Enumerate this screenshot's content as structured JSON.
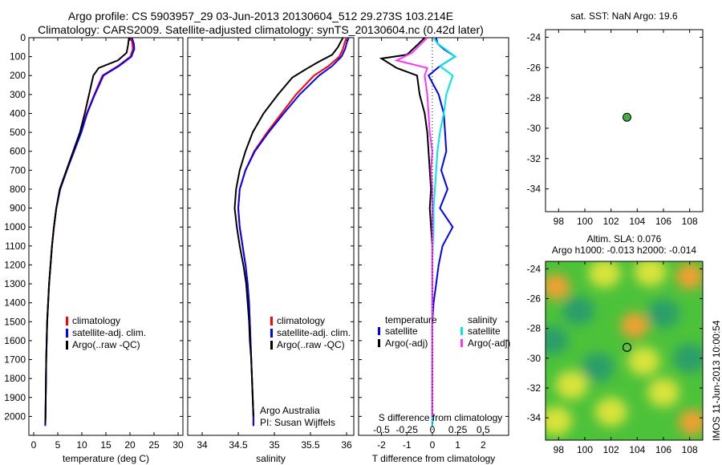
{
  "header": {
    "line1": "Argo profile: CS 5903957_29 03-Jun-2013 20130604_512 29.273S 103.214E",
    "line2": "Climatology: CARS2009. Satellite-adjusted climatology: synTS_20130604.nc (0.42d later)"
  },
  "watermark": "IMOS 11-Jun-2013 10:00:54",
  "colors": {
    "climatology": "#ff0000",
    "satellite": "#0000ff",
    "argo": "#000000",
    "salinity_satellite": "#00e5e5",
    "salinity_argo": "#ff33ff",
    "float_marker": "#3cb043"
  },
  "chart_data": [
    {
      "id": "temperature",
      "type": "line",
      "xlabel": "temperature (deg C)",
      "xlim": [
        -1,
        31
      ],
      "xticks": [
        0,
        5,
        10,
        15,
        20,
        25,
        30
      ],
      "ylim": [
        2100,
        0
      ],
      "yticks": [
        0,
        100,
        200,
        300,
        400,
        500,
        600,
        700,
        800,
        900,
        1000,
        1100,
        1200,
        1300,
        1400,
        1500,
        1600,
        1700,
        1800,
        1900,
        2000
      ],
      "legend": [
        "climatology",
        "satellite-adj. clim.",
        "Argo(..raw -QC)"
      ],
      "series": [
        {
          "name": "climatology",
          "color": "red",
          "x": [
            20.2,
            20.5,
            20.6,
            20.1,
            17.5,
            14.3,
            12.6,
            11.0,
            9.8,
            8.3,
            6.9,
            5.5,
            4.7,
            4.2,
            3.8,
            3.5,
            3.2,
            3.0,
            2.8,
            2.7,
            2.6,
            2.55,
            2.5,
            2.45,
            2.4
          ],
          "y": [
            0,
            30,
            60,
            100,
            150,
            200,
            300,
            400,
            500,
            600,
            700,
            800,
            900,
            1000,
            1100,
            1200,
            1300,
            1400,
            1500,
            1600,
            1700,
            1800,
            1900,
            2000,
            2050
          ]
        },
        {
          "name": "satellite-adj. clim.",
          "color": "blue",
          "x": [
            20.4,
            20.8,
            20.9,
            20.3,
            17.7,
            14.5,
            12.7,
            11.1,
            9.9,
            8.4,
            6.9,
            5.5,
            4.7,
            4.2,
            3.8,
            3.5,
            3.2,
            3.0,
            2.8,
            2.7,
            2.6,
            2.55,
            2.5,
            2.45,
            2.4
          ],
          "y": [
            0,
            30,
            60,
            100,
            150,
            200,
            300,
            400,
            500,
            600,
            700,
            800,
            900,
            1000,
            1100,
            1200,
            1300,
            1400,
            1500,
            1600,
            1700,
            1800,
            1900,
            2000,
            2050
          ]
        },
        {
          "name": "Argo(..raw -QC)",
          "color": "black",
          "x": [
            19.8,
            19.6,
            19.3,
            17.5,
            13.5,
            12.4,
            11.5,
            10.6,
            9.6,
            8.2,
            6.8,
            5.4,
            4.7,
            4.2,
            3.8,
            3.5,
            3.2,
            3.0,
            2.8,
            2.7,
            2.6,
            2.55,
            2.5,
            2.45,
            2.4
          ],
          "y": [
            0,
            40,
            80,
            120,
            160,
            200,
            300,
            400,
            500,
            600,
            700,
            800,
            900,
            1000,
            1100,
            1200,
            1300,
            1400,
            1500,
            1600,
            1700,
            1800,
            1900,
            2000,
            2040
          ]
        }
      ]
    },
    {
      "id": "salinity",
      "type": "line",
      "xlabel": "salinity",
      "xlim": [
        33.8,
        36.1
      ],
      "xticks": [
        34,
        34.5,
        35,
        35.5,
        36
      ],
      "ylim": [
        2100,
        0
      ],
      "legend": [
        "climatology",
        "satellite-adj. clim.",
        "Argo(..raw -QC)"
      ],
      "annotations": [
        "Argo Australia",
        "PI: Susan Wijffels"
      ],
      "series": [
        {
          "name": "climatology",
          "color": "red",
          "x": [
            36.0,
            35.97,
            35.95,
            35.9,
            35.75,
            35.55,
            35.3,
            35.1,
            34.9,
            34.72,
            34.6,
            34.52,
            34.5,
            34.52,
            34.56,
            34.6,
            34.63,
            34.65,
            34.66,
            34.67,
            34.68,
            34.69,
            34.7,
            34.71,
            34.71
          ],
          "y": [
            0,
            30,
            60,
            100,
            150,
            200,
            300,
            400,
            500,
            600,
            700,
            800,
            900,
            1000,
            1100,
            1200,
            1300,
            1400,
            1500,
            1600,
            1700,
            1800,
            1900,
            2000,
            2050
          ]
        },
        {
          "name": "satellite-adj. clim.",
          "color": "blue",
          "x": [
            36.03,
            36.0,
            35.98,
            35.93,
            35.8,
            35.62,
            35.35,
            35.13,
            34.92,
            34.73,
            34.6,
            34.52,
            34.5,
            34.52,
            34.56,
            34.6,
            34.63,
            34.65,
            34.66,
            34.67,
            34.68,
            34.69,
            34.7,
            34.71,
            34.71
          ],
          "y": [
            0,
            30,
            60,
            100,
            150,
            200,
            300,
            400,
            500,
            600,
            700,
            800,
            900,
            1000,
            1100,
            1200,
            1300,
            1400,
            1500,
            1600,
            1700,
            1800,
            1900,
            2000,
            2050
          ]
        },
        {
          "name": "Argo(..raw -QC)",
          "color": "black",
          "x": [
            35.95,
            35.88,
            35.8,
            35.6,
            35.42,
            35.25,
            35.05,
            34.85,
            34.7,
            34.6,
            34.52,
            34.47,
            34.45,
            34.48,
            34.52,
            34.57,
            34.61,
            34.63,
            34.65,
            34.66,
            34.68,
            34.69,
            34.7,
            34.71
          ],
          "y": [
            0,
            50,
            90,
            130,
            170,
            210,
            300,
            400,
            500,
            600,
            700,
            800,
            900,
            1000,
            1100,
            1200,
            1300,
            1400,
            1500,
            1600,
            1700,
            1800,
            1900,
            2000
          ]
        }
      ]
    },
    {
      "id": "difference",
      "type": "line",
      "xlabel": "T difference from climatology",
      "xlabel_top": "S difference from climatology",
      "xlim": [
        -2.9,
        3.0
      ],
      "xticks": [
        -2,
        -1,
        0,
        1,
        2
      ],
      "xticks_top": [
        "-0.5",
        "-0.25",
        "0",
        "0.25",
        "0.5"
      ],
      "ylim": [
        2100,
        0
      ],
      "legend_temperature": [
        "temperature",
        "satellite",
        "Argo(-adj)"
      ],
      "legend_salinity": [
        "salinity",
        "satellite",
        "Argo(-adj)"
      ],
      "series": [
        {
          "name": "satellite",
          "color": "blue",
          "x": [
            0.15,
            0.2,
            0.45,
            0.9,
            0.3,
            -0.15,
            0.25,
            0.45,
            0.5,
            0.55,
            0.35,
            0.6,
            0.3,
            0.8,
            0.4,
            0.25,
            0.15,
            0.05,
            0.0,
            0.0,
            0.0,
            0.0,
            0.0,
            0.0,
            0.0
          ],
          "y": [
            0,
            30,
            60,
            100,
            150,
            200,
            300,
            400,
            500,
            600,
            700,
            800,
            900,
            1000,
            1100,
            1200,
            1300,
            1400,
            1500,
            1600,
            1700,
            1800,
            1900,
            2000,
            2050
          ]
        },
        {
          "name": "Argo(-adj)",
          "color": "black",
          "x": [
            -0.3,
            -0.6,
            -1.0,
            -2.0,
            -1.4,
            -0.6,
            -0.5,
            -0.3,
            -0.2,
            -0.15,
            -0.1,
            -0.05,
            -0.1,
            -0.05,
            0.0,
            0.0,
            0.0,
            0.0,
            0.0,
            0.0,
            0.0,
            0.0,
            0.0,
            0.0
          ],
          "y": [
            0,
            40,
            90,
            110,
            160,
            200,
            300,
            400,
            500,
            600,
            700,
            800,
            900,
            1000,
            1100,
            1200,
            1300,
            1400,
            1500,
            1600,
            1700,
            1800,
            1900,
            2000
          ]
        },
        {
          "name": "salinity satellite",
          "color": "cyan",
          "x": [
            0.05,
            0.2,
            0.5,
            0.9,
            0.3,
            0.8,
            0.55,
            0.45,
            0.3,
            0.2,
            0.15,
            0.1,
            0.05,
            0.05,
            0.02,
            0.0,
            0.0,
            0.0,
            0.0,
            0.0,
            0.0,
            0.0,
            0.0,
            0.0,
            0.0
          ],
          "y": [
            0,
            30,
            60,
            100,
            150,
            200,
            300,
            400,
            500,
            600,
            700,
            800,
            900,
            1000,
            1100,
            1200,
            1300,
            1400,
            1500,
            1600,
            1700,
            1800,
            1900,
            2000,
            2050
          ]
        },
        {
          "name": "salinity Argo(-adj)",
          "color": "magenta",
          "x": [
            -0.2,
            -0.5,
            -0.8,
            -1.4,
            -0.2,
            -0.3,
            -0.2,
            -0.15,
            -0.1,
            0.0,
            -0.05,
            0.0,
            0.0,
            0.0,
            0.0,
            0.0,
            0.0,
            0.0,
            0.0,
            0.0,
            0.0,
            0.0,
            0.0,
            0.0
          ],
          "y": [
            0,
            40,
            80,
            120,
            160,
            200,
            300,
            400,
            500,
            600,
            700,
            800,
            900,
            1000,
            1100,
            1200,
            1300,
            1400,
            1500,
            1600,
            1700,
            1800,
            1900,
            2000
          ]
        }
      ]
    },
    {
      "id": "sst-map",
      "type": "scatter",
      "title": "sat. SST: NaN Argo: 19.6",
      "xlim": [
        97,
        109
      ],
      "ylim": [
        -35.5,
        -23.5
      ],
      "xticks": [
        98,
        100,
        102,
        104,
        106,
        108
      ],
      "yticks": [
        -24,
        -26,
        -28,
        -30,
        -32,
        -34
      ],
      "points": [
        {
          "lon": 103.214,
          "lat": -29.273
        }
      ]
    },
    {
      "id": "sla-map",
      "type": "heatmap",
      "title": "Altim. SLA: 0.076",
      "subtitle": "Argo h1000: -0.013 h2000: -0.014",
      "xlim": [
        97,
        109
      ],
      "ylim": [
        -35.5,
        -23.5
      ],
      "xticks": [
        98,
        100,
        102,
        104,
        106,
        108
      ],
      "yticks": [
        -24,
        -26,
        -28,
        -30,
        -32,
        -34
      ],
      "points": [
        {
          "lon": 103.214,
          "lat": -29.273
        }
      ],
      "blobs": [
        {
          "lon": 97.8,
          "lat": -25.2,
          "level": "high"
        },
        {
          "lon": 101.5,
          "lat": -24.3,
          "level": "mid"
        },
        {
          "lon": 105.0,
          "lat": -24.2,
          "level": "mid"
        },
        {
          "lon": 108.0,
          "lat": -24.5,
          "level": "high"
        },
        {
          "lon": 99.5,
          "lat": -26.8,
          "level": "low"
        },
        {
          "lon": 106.0,
          "lat": -27.0,
          "level": "low"
        },
        {
          "lon": 103.8,
          "lat": -27.8,
          "level": "high"
        },
        {
          "lon": 97.5,
          "lat": -28.8,
          "level": "low"
        },
        {
          "lon": 101.0,
          "lat": -30.6,
          "level": "low"
        },
        {
          "lon": 104.5,
          "lat": -30.2,
          "level": "mid"
        },
        {
          "lon": 108.0,
          "lat": -30.0,
          "level": "low"
        },
        {
          "lon": 99.0,
          "lat": -31.8,
          "level": "mid"
        },
        {
          "lon": 106.0,
          "lat": -32.3,
          "level": "mid"
        },
        {
          "lon": 102.0,
          "lat": -33.6,
          "level": "mid"
        },
        {
          "lon": 108.2,
          "lat": -34.3,
          "level": "high"
        },
        {
          "lon": 97.8,
          "lat": -34.2,
          "level": "mid"
        }
      ]
    }
  ]
}
